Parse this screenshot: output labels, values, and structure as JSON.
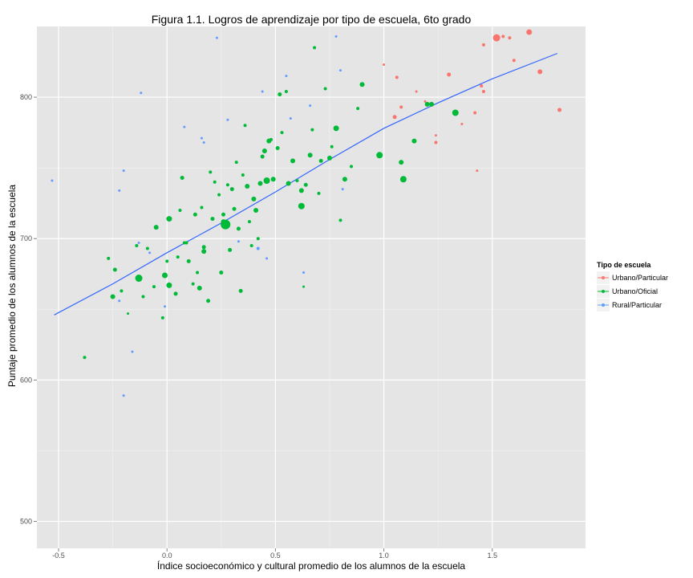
{
  "chart_data": {
    "type": "scatter",
    "title": "Figura 1.1. Logros de aprendizaje por tipo de escuela, 6to grado",
    "xlabel": "Índice socioeconómico y cultural promedio de los alumnos de la escuela",
    "ylabel": "Puntaje promedio de los alumnos de la escuela",
    "xlim": [
      -0.6,
      1.93
    ],
    "ylim": [
      481,
      850
    ],
    "x_ticks": [
      -0.5,
      0.0,
      0.5,
      1.0,
      1.5
    ],
    "x_tick_labels": [
      "-0.5",
      "0.0",
      "0.5",
      "1.0",
      "1.5"
    ],
    "y_ticks": [
      500,
      600,
      700,
      800
    ],
    "y_tick_labels": [
      "500",
      "600",
      "700",
      "800"
    ],
    "grid": true,
    "background": "#e5e5e5",
    "legend": {
      "title": "Tipo de escuela",
      "position": "right",
      "entries": [
        {
          "label": "Urbano/Particular",
          "color": "#f8766d"
        },
        {
          "label": "Urbano/Oficial",
          "color": "#00ba38"
        },
        {
          "label": "Rural/Particular",
          "color": "#619cff"
        }
      ]
    },
    "trend_line": {
      "color": "#3366ff",
      "x": [
        -0.52,
        -0.25,
        0.0,
        0.25,
        0.5,
        0.75,
        1.0,
        1.25,
        1.5,
        1.8
      ],
      "y": [
        646,
        668,
        690,
        711,
        733,
        756,
        778,
        796,
        813,
        831
      ]
    },
    "series": [
      {
        "name": "Urbano/Particular",
        "color": "#f8766d",
        "points": [
          [
            1.52,
            842,
            4.5
          ],
          [
            1.55,
            843,
            2
          ],
          [
            1.67,
            846,
            3.5
          ],
          [
            1.46,
            837,
            2
          ],
          [
            1.58,
            842,
            2
          ],
          [
            1.6,
            826,
            2
          ],
          [
            1.72,
            818,
            3
          ],
          [
            1.81,
            791,
            2.5
          ],
          [
            1.3,
            816,
            2.5
          ],
          [
            1.22,
            795,
            2.5
          ],
          [
            1.15,
            804,
            1.5
          ],
          [
            1.06,
            814,
            2
          ],
          [
            1.0,
            823,
            1.5
          ],
          [
            1.05,
            786,
            2.5
          ],
          [
            1.08,
            793,
            2
          ],
          [
            1.19,
            797,
            1.5
          ],
          [
            1.24,
            773,
            1.5
          ],
          [
            1.24,
            768,
            2
          ],
          [
            1.36,
            781,
            1.5
          ],
          [
            1.42,
            789,
            2
          ],
          [
            1.45,
            808,
            2
          ],
          [
            1.46,
            804,
            2
          ],
          [
            1.43,
            748,
            1.5
          ]
        ]
      },
      {
        "name": "Urbano/Oficial",
        "color": "#00ba38",
        "points": [
          [
            0.27,
            710,
            6
          ],
          [
            0.26,
            712,
            3
          ],
          [
            -0.13,
            672,
            4.5
          ],
          [
            -0.01,
            674,
            3.5
          ],
          [
            0.01,
            667,
            3.5
          ],
          [
            0.01,
            714,
            3.5
          ],
          [
            -0.05,
            708,
            3
          ],
          [
            0.07,
            743,
            2.5
          ],
          [
            0.1,
            684,
            2.5
          ],
          [
            0.15,
            665,
            3
          ],
          [
            0.14,
            676,
            2
          ],
          [
            0.17,
            691,
            3
          ],
          [
            0.19,
            656,
            2.5
          ],
          [
            0.25,
            676,
            2.5
          ],
          [
            0.29,
            692,
            2.5
          ],
          [
            0.3,
            735,
            2.5
          ],
          [
            0.34,
            663,
            2.5
          ],
          [
            0.37,
            737,
            3
          ],
          [
            0.4,
            728,
            3
          ],
          [
            0.41,
            720,
            3
          ],
          [
            0.43,
            739,
            3
          ],
          [
            0.45,
            762,
            3
          ],
          [
            0.46,
            741,
            4
          ],
          [
            0.47,
            769,
            3
          ],
          [
            0.49,
            742,
            3
          ],
          [
            0.51,
            764,
            2.5
          ],
          [
            0.52,
            802,
            2.5
          ],
          [
            0.56,
            739,
            3
          ],
          [
            0.58,
            755,
            3
          ],
          [
            0.62,
            723,
            4
          ],
          [
            0.62,
            734,
            3
          ],
          [
            0.64,
            738,
            2.5
          ],
          [
            0.66,
            759,
            3
          ],
          [
            0.68,
            835,
            2
          ],
          [
            0.71,
            755,
            2.5
          ],
          [
            0.75,
            757,
            3
          ],
          [
            0.78,
            778,
            3.5
          ],
          [
            0.82,
            742,
            3
          ],
          [
            0.88,
            792,
            2
          ],
          [
            0.9,
            809,
            3
          ],
          [
            0.98,
            759,
            4
          ],
          [
            1.09,
            742,
            4
          ],
          [
            1.14,
            769,
            3
          ],
          [
            1.2,
            795,
            3
          ],
          [
            1.33,
            789,
            4
          ],
          [
            1.08,
            754,
            3
          ],
          [
            1.22,
            795,
            3
          ],
          [
            -0.38,
            616,
            2
          ],
          [
            -0.25,
            659,
            3
          ],
          [
            -0.24,
            678,
            2.5
          ],
          [
            -0.27,
            686,
            2
          ],
          [
            -0.21,
            663,
            2
          ],
          [
            -0.14,
            695,
            2
          ],
          [
            -0.11,
            659,
            2
          ],
          [
            -0.09,
            693,
            2
          ],
          [
            -0.02,
            644,
            2
          ],
          [
            0.04,
            661,
            2.5
          ],
          [
            0.05,
            687,
            2
          ],
          [
            0.06,
            720,
            2
          ],
          [
            0.09,
            697,
            2
          ],
          [
            0.13,
            717,
            2.5
          ],
          [
            0.17,
            694,
            2.5
          ],
          [
            0.21,
            714,
            2.5
          ],
          [
            0.22,
            740,
            2
          ],
          [
            0.24,
            731,
            2
          ],
          [
            0.26,
            717,
            2.5
          ],
          [
            0.28,
            738,
            2
          ],
          [
            0.31,
            721,
            2.5
          ],
          [
            0.33,
            707,
            2.5
          ],
          [
            0.35,
            745,
            2
          ],
          [
            0.38,
            712,
            2
          ],
          [
            0.42,
            700,
            2
          ],
          [
            0.44,
            758,
            2.5
          ],
          [
            0.48,
            770,
            2
          ],
          [
            0.53,
            775,
            2
          ],
          [
            0.55,
            804,
            2
          ],
          [
            0.6,
            741,
            2
          ],
          [
            0.63,
            666,
            1.5
          ],
          [
            0.67,
            777,
            2
          ],
          [
            0.7,
            732,
            2
          ],
          [
            0.73,
            806,
            2
          ],
          [
            0.76,
            765,
            2
          ],
          [
            0.8,
            713,
            2
          ],
          [
            0.85,
            751,
            2
          ],
          [
            -0.06,
            666,
            2
          ],
          [
            0.0,
            684,
            2
          ],
          [
            0.12,
            668,
            2
          ],
          [
            0.2,
            747,
            2
          ],
          [
            0.32,
            754,
            2
          ],
          [
            0.36,
            780,
            2
          ],
          [
            0.39,
            695,
            2
          ],
          [
            -0.18,
            647,
            1.5
          ],
          [
            0.08,
            697,
            2
          ],
          [
            0.16,
            722,
            2
          ]
        ]
      },
      {
        "name": "Rural/Particular",
        "color": "#619cff",
        "points": [
          [
            0.23,
            842,
            1.5
          ],
          [
            0.78,
            843,
            1.5
          ],
          [
            -0.12,
            803,
            1.5
          ],
          [
            0.08,
            779,
            1.5
          ],
          [
            0.16,
            771,
            1.5
          ],
          [
            -0.2,
            748,
            1.5
          ],
          [
            -0.53,
            741,
            1.5
          ],
          [
            -0.22,
            734,
            1.5
          ],
          [
            -0.13,
            697,
            1.5
          ],
          [
            0.42,
            693,
            2
          ],
          [
            0.46,
            686,
            1.5
          ],
          [
            -0.16,
            620,
            1.5
          ],
          [
            -0.2,
            589,
            1.5
          ],
          [
            0.63,
            676,
            1.5
          ],
          [
            0.81,
            735,
            1.5
          ],
          [
            0.8,
            819,
            1.5
          ],
          [
            0.66,
            794,
            1.5
          ],
          [
            0.57,
            785,
            1.5
          ],
          [
            0.28,
            784,
            1.5
          ],
          [
            0.17,
            768,
            1.5
          ],
          [
            -0.01,
            652,
            1.5
          ],
          [
            -0.08,
            690,
            1.5
          ],
          [
            -0.22,
            656,
            1.5
          ],
          [
            0.33,
            698,
            1.5
          ],
          [
            0.55,
            815,
            1.5
          ],
          [
            0.44,
            804,
            1.5
          ]
        ]
      }
    ]
  }
}
